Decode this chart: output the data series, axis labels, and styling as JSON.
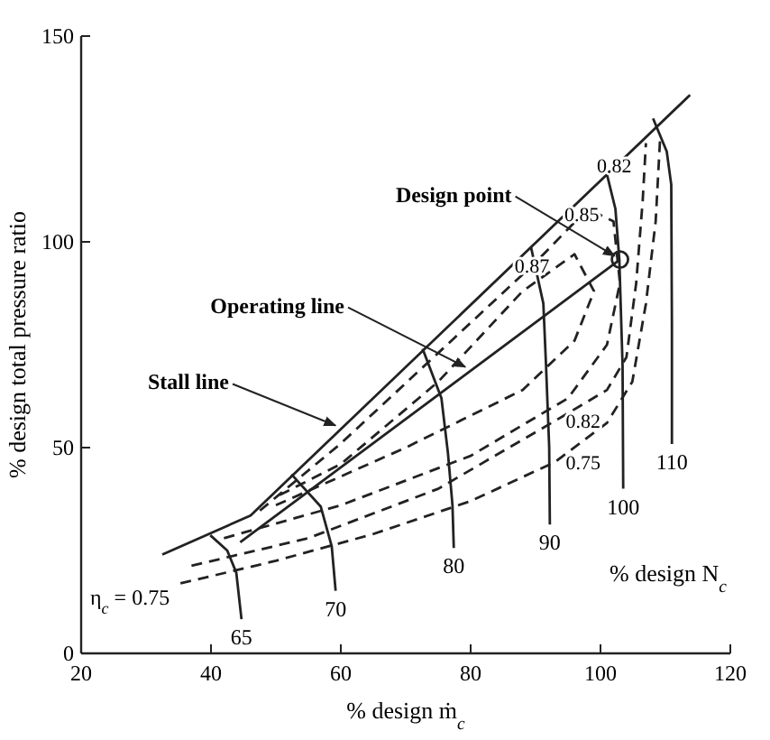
{
  "chart_data": {
    "type": "line",
    "xlabel": "% design ṁ$_{c}$",
    "ylabel": "% design total pressure ratio",
    "xlim": [
      20,
      120
    ],
    "ylim": [
      0,
      150
    ],
    "xticks": [
      20,
      40,
      60,
      80,
      100,
      120
    ],
    "yticks": [
      0,
      50,
      100,
      150
    ],
    "series": [
      {
        "color": "#222222",
        "line_style": "solid",
        "x": [
          32.5,
          46.1,
          113.8
        ],
        "values": [
          24,
          33.5,
          135.7
        ]
      },
      {
        "color": "#222222",
        "line_style": "solid",
        "x": [
          39.9,
          42.5,
          43.9,
          44.7
        ],
        "values": [
          28.7,
          25,
          19.6,
          8.3
        ]
      },
      {
        "color": "#222222",
        "line_style": "solid",
        "x": [
          52.4,
          56.9,
          58.6,
          59.2
        ],
        "values": [
          43.5,
          35.7,
          26,
          15.2
        ]
      },
      {
        "color": "#222222",
        "line_style": "solid",
        "x": [
          72.6,
          75.5,
          76.5,
          77.2,
          77.4
        ],
        "values": [
          74,
          62,
          48.7,
          36,
          25.6
        ]
      },
      {
        "color": "#222222",
        "line_style": "solid",
        "x": [
          89.3,
          91.2,
          91.6,
          92.1,
          92.2
        ],
        "values": [
          98.7,
          85,
          70.4,
          50,
          31.3
        ]
      },
      {
        "color": "#222222",
        "line_style": "solid",
        "x": [
          100.7,
          102.3,
          102.9,
          103.4,
          103.5
        ],
        "values": [
          118.3,
          108,
          95.7,
          70,
          40
        ]
      },
      {
        "color": "#222222",
        "line_style": "solid",
        "x": [
          108.1,
          110.2,
          110.9,
          111,
          111
        ],
        "values": [
          130,
          122,
          113.9,
          80,
          50.9
        ]
      },
      {
        "color": "#222222",
        "line_style": "solid",
        "x": [
          44.5,
          103
        ],
        "values": [
          27,
          95.7
        ]
      },
      {
        "color": "#222222",
        "line_style": "dashed",
        "x": [
          35.3,
          50,
          65,
          80,
          93,
          101,
          104.9,
          107,
          108.5,
          109.2
        ],
        "values": [
          17,
          22.5,
          29,
          37,
          46.5,
          56,
          66,
          85,
          105,
          125.6
        ]
      },
      {
        "color": "#222222",
        "line_style": "dashed",
        "x": [
          37,
          55,
          75,
          93,
          101,
          104,
          105.5,
          106.5,
          107
        ],
        "values": [
          21.3,
          28,
          40,
          56.5,
          64,
          72,
          90,
          110,
          124
        ]
      },
      {
        "color": "#222222",
        "line_style": "dashed",
        "x": [
          42,
          60,
          80,
          95,
          101,
          103,
          102,
          98,
          90,
          75,
          60,
          47
        ],
        "values": [
          28,
          36,
          48,
          62,
          75,
          90,
          105,
          108,
          95,
          73,
          51,
          34
        ]
      },
      {
        "color": "#222222",
        "line_style": "dashed",
        "x": [
          50,
          70,
          88,
          96,
          99,
          96,
          88,
          75,
          60,
          50
        ],
        "values": [
          36,
          50,
          64,
          76,
          88,
          97,
          88,
          66,
          46,
          38
        ]
      },
      {
        "type": "scatter",
        "color": "#222222",
        "marker": "circle",
        "x": [
          103
        ],
        "values": [
          95.7
        ]
      }
    ],
    "annotations": [
      {
        "text": "Design point",
        "x": 103,
        "y": 95.7
      },
      {
        "text": "Operating line",
        "x": 80,
        "y": 68.7
      },
      {
        "text": "Stall line",
        "x": 60,
        "y": 54.5
      },
      {
        "text": "η$_{c}$ = 0.75",
        "x": 35.3,
        "y": 17
      },
      {
        "text": "65",
        "x": 44.7,
        "y": 8.3
      },
      {
        "text": "70",
        "x": 59.2,
        "y": 15.2
      },
      {
        "text": "80",
        "x": 77.4,
        "y": 25.6
      },
      {
        "text": "90",
        "x": 92.2,
        "y": 31.3
      },
      {
        "text": "100",
        "x": 103.5,
        "y": 40
      },
      {
        "text": "110",
        "x": 111,
        "y": 50.9
      },
      {
        "text": "0.82",
        "x": 107,
        "y": 124
      },
      {
        "text": "0.85",
        "x": 102,
        "y": 105
      },
      {
        "text": "0.87",
        "x": 96,
        "y": 97
      },
      {
        "text": "0.82",
        "x": 93,
        "y": 56.5
      },
      {
        "text": "0.75",
        "x": 93,
        "y": 46.5
      },
      "% design N$_{c}$"
    ]
  }
}
